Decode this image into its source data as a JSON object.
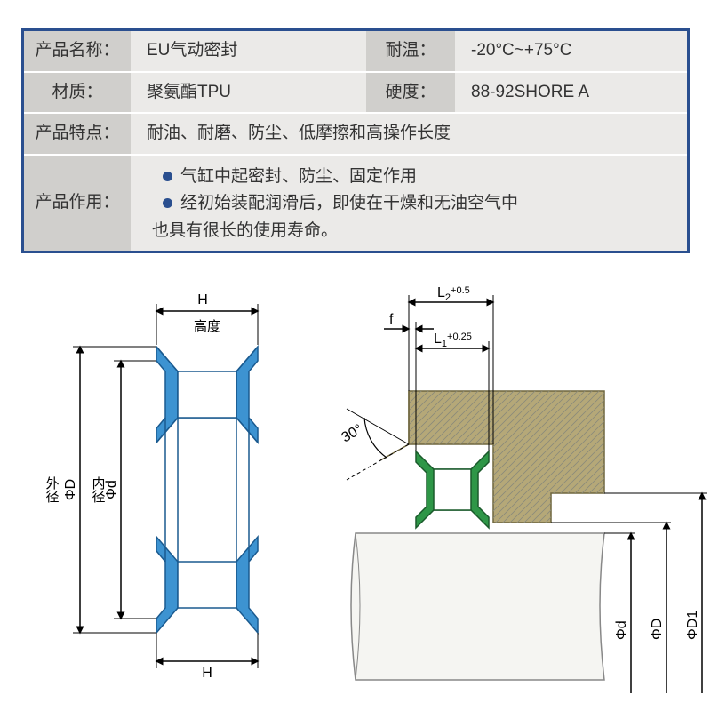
{
  "table": {
    "border_color": "#2a4f8f",
    "label_bg": "#d0cfcc",
    "value_bg": "#ebeae8",
    "bullet_color": "#2a4f8f",
    "rows": [
      {
        "cells": [
          {
            "label": "产品名称：",
            "value": "EU气动密封"
          },
          {
            "label": "耐温：",
            "value": "-20°C~+75°C"
          }
        ]
      },
      {
        "cells": [
          {
            "label": "材质：",
            "value": "聚氨酯TPU"
          },
          {
            "label": "硬度：",
            "value": "88-92SHORE A"
          }
        ]
      },
      {
        "cells": [
          {
            "label": "产品特点：",
            "value": "耐油、耐磨、防尘、低摩擦和高操作长度"
          }
        ]
      },
      {
        "cells": [
          {
            "label": "产品作用：",
            "bullets": [
              "气缸中起密封、防尘、固定作用",
              "经初始装配润滑后，即使在干燥和无油空气中"
            ],
            "continuation": "也具有很长的使用寿命。"
          }
        ]
      }
    ]
  },
  "diagram_left": {
    "seal_fill": "#3d93d1",
    "seal_stroke": "#1a5a8f",
    "line_color": "#000000",
    "labels": {
      "H_top": "H",
      "height_cn": "高度",
      "H_bottom": "H",
      "outer_cn": "外径",
      "inner_cn": "内径",
      "phiD": "ΦD",
      "phid": "Φd"
    }
  },
  "diagram_right": {
    "housing_fill": "#b5a878",
    "seal_fill": "#2e9647",
    "shaft_fill": "#f5f5f2",
    "line_color": "#000000",
    "labels": {
      "L2": "L",
      "L2_sub": "2",
      "L2_tol": "+0.5",
      "L1": "L",
      "L1_sub": "1",
      "L1_tol": "+0.25",
      "f": "f",
      "angle": "30°",
      "phid": "Φd",
      "phiD": "ΦD",
      "phiD1": "ΦD1"
    }
  }
}
